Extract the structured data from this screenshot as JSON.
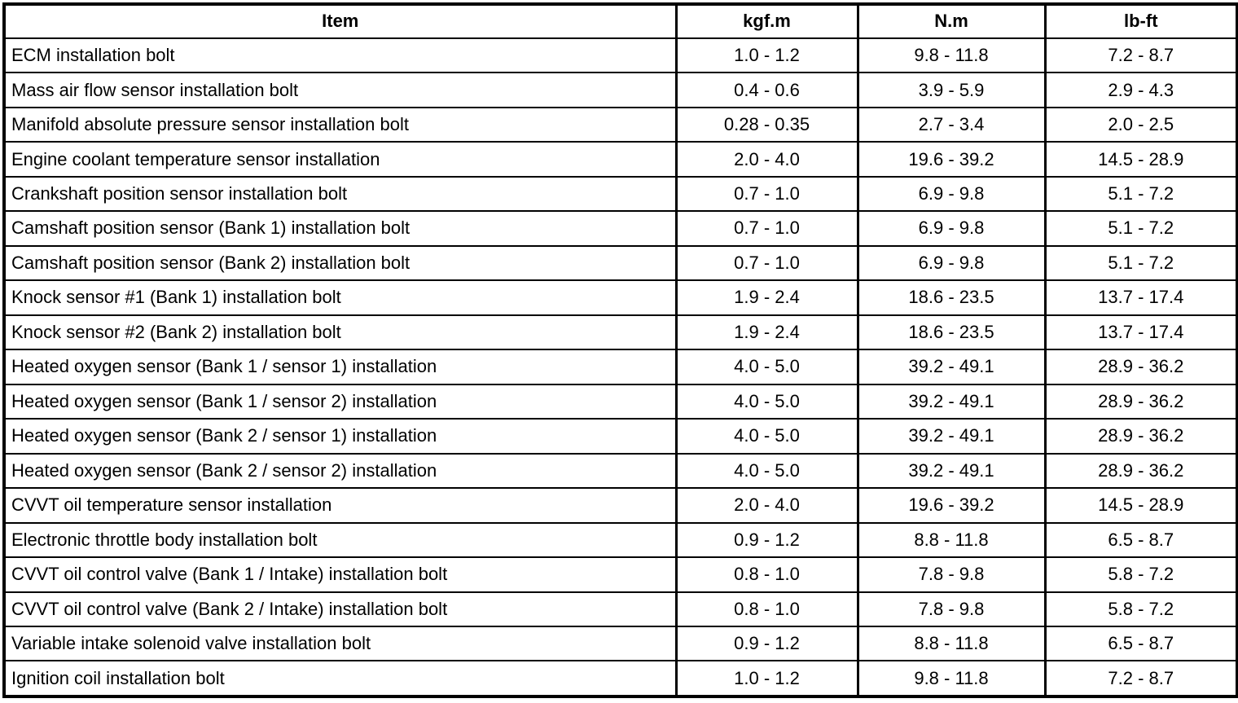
{
  "table": {
    "headers": {
      "item": "Item",
      "kgfm": "kgf.m",
      "nm": "N.m",
      "lbft": "lb-ft"
    },
    "rows": [
      {
        "item": "ECM installation bolt",
        "kgfm": "1.0 - 1.2",
        "nm": "9.8 - 11.8",
        "lbft": "7.2 - 8.7"
      },
      {
        "item": "Mass air flow sensor installation bolt",
        "kgfm": "0.4 - 0.6",
        "nm": "3.9 - 5.9",
        "lbft": "2.9 - 4.3"
      },
      {
        "item": "Manifold absolute pressure sensor installation bolt",
        "kgfm": "0.28 - 0.35",
        "nm": "2.7 - 3.4",
        "lbft": "2.0 - 2.5"
      },
      {
        "item": "Engine coolant temperature sensor installation",
        "kgfm": "2.0 - 4.0",
        "nm": "19.6 - 39.2",
        "lbft": "14.5 - 28.9"
      },
      {
        "item": "Crankshaft position sensor installation bolt",
        "kgfm": "0.7 - 1.0",
        "nm": "6.9 - 9.8",
        "lbft": "5.1 - 7.2"
      },
      {
        "item": "Camshaft position sensor (Bank 1) installation bolt",
        "kgfm": "0.7 - 1.0",
        "nm": "6.9 - 9.8",
        "lbft": "5.1 - 7.2"
      },
      {
        "item": "Camshaft position sensor (Bank 2) installation bolt",
        "kgfm": "0.7 - 1.0",
        "nm": "6.9 - 9.8",
        "lbft": "5.1 - 7.2"
      },
      {
        "item": "Knock sensor #1 (Bank 1) installation bolt",
        "kgfm": "1.9 - 2.4",
        "nm": "18.6 - 23.5",
        "lbft": "13.7 - 17.4"
      },
      {
        "item": "Knock sensor #2 (Bank 2) installation bolt",
        "kgfm": "1.9 - 2.4",
        "nm": "18.6 - 23.5",
        "lbft": "13.7 - 17.4"
      },
      {
        "item": "Heated oxygen sensor (Bank 1 / sensor 1) installation",
        "kgfm": "4.0 - 5.0",
        "nm": "39.2 - 49.1",
        "lbft": "28.9 - 36.2"
      },
      {
        "item": "Heated oxygen sensor (Bank 1 / sensor 2) installation",
        "kgfm": "4.0 - 5.0",
        "nm": "39.2 - 49.1",
        "lbft": "28.9 - 36.2"
      },
      {
        "item": "Heated oxygen sensor (Bank 2 / sensor 1) installation",
        "kgfm": "4.0 - 5.0",
        "nm": "39.2 - 49.1",
        "lbft": "28.9 - 36.2"
      },
      {
        "item": "Heated oxygen sensor (Bank 2 / sensor 2) installation",
        "kgfm": "4.0 - 5.0",
        "nm": "39.2 - 49.1",
        "lbft": "28.9 - 36.2"
      },
      {
        "item": "CVVT oil temperature sensor installation",
        "kgfm": "2.0 - 4.0",
        "nm": "19.6 - 39.2",
        "lbft": "14.5 - 28.9"
      },
      {
        "item": "Electronic throttle body installation bolt",
        "kgfm": "0.9 - 1.2",
        "nm": "8.8 - 11.8",
        "lbft": "6.5 - 8.7"
      },
      {
        "item": "CVVT oil control valve (Bank 1 / Intake) installation bolt",
        "kgfm": "0.8 - 1.0",
        "nm": "7.8 - 9.8",
        "lbft": "5.8 - 7.2"
      },
      {
        "item": "CVVT oil control valve (Bank 2 / Intake) installation bolt",
        "kgfm": "0.8 - 1.0",
        "nm": "7.8 - 9.8",
        "lbft": "5.8 - 7.2"
      },
      {
        "item": "Variable intake solenoid valve installation bolt",
        "kgfm": "0.9 - 1.2",
        "nm": "8.8 - 11.8",
        "lbft": "6.5 - 8.7"
      },
      {
        "item": "Ignition coil installation bolt",
        "kgfm": "1.0 - 1.2",
        "nm": "9.8 - 11.8",
        "lbft": "7.2 - 8.7"
      }
    ],
    "colors": {
      "border": "#000000",
      "background": "#ffffff",
      "text": "#000000"
    }
  }
}
